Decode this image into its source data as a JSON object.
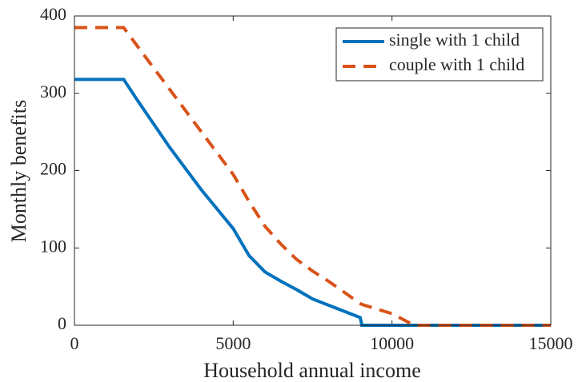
{
  "chart_data": {
    "type": "line",
    "x_label": "Household annual income",
    "y_label": "Monthly benefits",
    "x": [
      0,
      1550,
      2000,
      3000,
      4000,
      5000,
      5500,
      6000,
      6500,
      7000,
      7500,
      8000,
      9000,
      9050,
      10000,
      10700,
      15000
    ],
    "series": [
      {
        "name": "single with 1 child",
        "color": "#0072BD",
        "line_style": "solid",
        "values": [
          318,
          318,
          290,
          230,
          175,
          125,
          90,
          69,
          57,
          46,
          34,
          26,
          10,
          0,
          0,
          0,
          0
        ]
      },
      {
        "name": "couple with 1 child",
        "color": "#D95319",
        "line_style": "dashed",
        "values": [
          385,
          385,
          360,
          305,
          250,
          195,
          160,
          128,
          105,
          85,
          70,
          57,
          28,
          27,
          15,
          0,
          0
        ]
      }
    ],
    "xlim": [
      0,
      15000
    ],
    "xticks": [
      0,
      5000,
      10000,
      15000
    ],
    "ylim": [
      0,
      400
    ],
    "yticks": [
      0,
      100,
      200,
      300,
      400
    ],
    "legend": "top-right"
  }
}
